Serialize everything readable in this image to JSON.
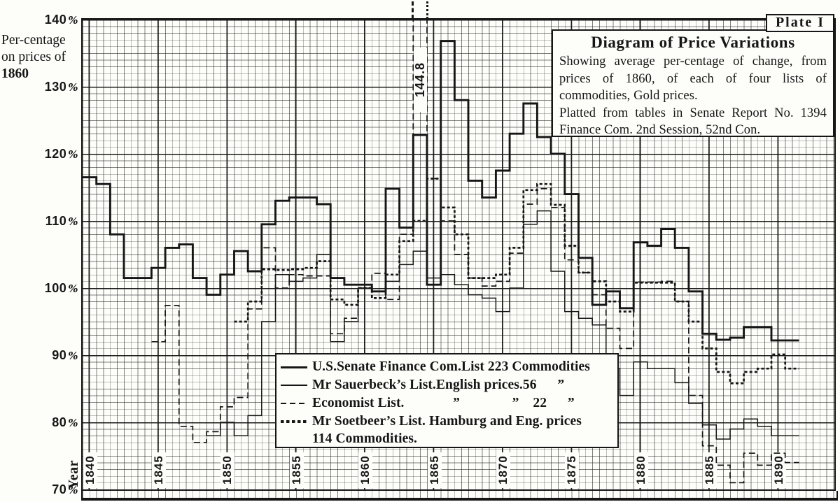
{
  "plate_label": "Plate I",
  "annotation": {
    "peak_label": "144.8"
  },
  "title_box": {
    "title": "Diagram of Price Variations",
    "subtitle_1": "Showing average per-centage of change, from prices of 1860, of each of four lists of commodities, Gold prices.",
    "subtitle_2": "Platted from tables in Senate Report No. 1394 Finance Com. 2nd Session, 52nd Con."
  },
  "y_axis": {
    "caption_lines": [
      "Per-centage",
      "on prices of",
      "1860"
    ],
    "percent_sign": "%",
    "tick_labels": [
      "140",
      "130",
      "120",
      "110",
      "100",
      "90",
      "80",
      "70"
    ]
  },
  "x_axis": {
    "caption": "Year",
    "tick_labels": [
      "1840",
      "1845",
      "1850",
      "1855",
      "1860",
      "1865",
      "1870",
      "1875",
      "1880",
      "1885",
      "1890"
    ]
  },
  "legend": {
    "entries": [
      {
        "style": "solid-thick",
        "label": "U.S.Senate Finance Com.List 223 Commodities"
      },
      {
        "style": "solid-thin",
        "label": "Mr Sauerbeck’s List.English prices.56      ”"
      },
      {
        "style": "dashed",
        "label": "Economist List.              ”               ”    22      ”"
      },
      {
        "style": "dotted-bold",
        "label": "Mr Soetbeer’s List. Hamburg and Eng. prices",
        "label2": "114 Commodities."
      }
    ]
  },
  "chart_data": {
    "type": "line",
    "subtype": "step",
    "title": "Diagram of Price Variations",
    "xlabel": "Year",
    "ylabel": "Per-centage on prices of 1860",
    "xlim": [
      1839,
      1893.5
    ],
    "ylim": [
      70,
      140
    ],
    "grid": "fine engraved grid: minor 0.5 year x 1%, major 5 years x 10%",
    "legend_position": "lower center box",
    "x_ticks": [
      1840,
      1845,
      1850,
      1855,
      1860,
      1865,
      1870,
      1875,
      1880,
      1885,
      1890
    ],
    "y_ticks": [
      70,
      80,
      90,
      100,
      110,
      120,
      130,
      140
    ],
    "annotations": [
      {
        "year": 1864,
        "value": 144.8,
        "text": "144.8",
        "note": "Economist List peak, spike clipped above 140% frame"
      }
    ],
    "series": [
      {
        "name": "U.S. Senate Finance Com. List 223 Commodities",
        "line": "solid-thick",
        "start_year": 1840,
        "values": [
          116.5,
          115.5,
          108,
          101.5,
          101.5,
          103,
          106,
          106.5,
          101.5,
          99,
          102,
          105.5,
          102.5,
          109.5,
          113,
          113.5,
          113.5,
          112.5,
          101.5,
          100.5,
          100.5,
          99.5,
          114.8,
          109,
          122.8,
          100.5,
          136.8,
          128,
          116,
          113.5,
          117.5,
          123,
          127.5,
          122.5,
          120,
          114,
          104.5,
          97.5,
          99.5,
          97,
          106.8,
          106.3,
          108.8,
          106,
          99.5,
          93.2,
          92.3,
          92.6,
          94.2,
          94.2,
          92.2,
          92.2
        ]
      },
      {
        "name": "Mr Sauerbeck's List. English prices. 56 Commodities",
        "line": "solid-thin",
        "start_year": 1849,
        "values": [
          78,
          80,
          78,
          81,
          95,
          102,
          101,
          101.5,
          105,
          92,
          95,
          100,
          99.5,
          101,
          103.5,
          105.5,
          101.5,
          102,
          100.5,
          99,
          98.5,
          96.5,
          100,
          109.5,
          111.5,
          102.5,
          96.5,
          95.5,
          94.5,
          88,
          84,
          89,
          88,
          88,
          85.9,
          82.8,
          79.6,
          77.5,
          79,
          80.5,
          79.4,
          78,
          78
        ]
      },
      {
        "name": "Economist List. English prices. 22 Commodities",
        "line": "dashed",
        "start_year": 1845,
        "values": [
          92,
          97.4,
          79.4,
          77,
          78.6,
          82.3,
          83.7,
          96.9,
          106,
          100,
          102,
          101.8,
          101.8,
          93.2,
          95.5,
          100,
          102.2,
          98.3,
          108,
          144.8,
          116.3,
          110,
          105,
          101.5,
          100.3,
          101,
          105.2,
          112.5,
          114.8,
          112,
          104.2,
          102.3,
          99,
          94,
          91,
          100.9,
          100.9,
          101,
          98,
          84,
          76.5,
          73.6,
          71,
          75.4,
          73.6,
          75.4,
          74
        ]
      },
      {
        "name": "Mr Soetbeer's List. Hamburg and Eng. prices 114 Commodities",
        "line": "dotted-bold",
        "start_year": 1851,
        "values": [
          95,
          98,
          102.8,
          102.7,
          102.8,
          103,
          104,
          98.3,
          97.5,
          100,
          98.5,
          102,
          107,
          110,
          116.3,
          112,
          108,
          101.5,
          101.5,
          102,
          106,
          114.6,
          115.5,
          112.4,
          106.3,
          102.3,
          101,
          98,
          96.5,
          100.8,
          100.8,
          100.8,
          98,
          95,
          91,
          87.5,
          85.8,
          87.5,
          88,
          90.1,
          88
        ]
      }
    ]
  }
}
